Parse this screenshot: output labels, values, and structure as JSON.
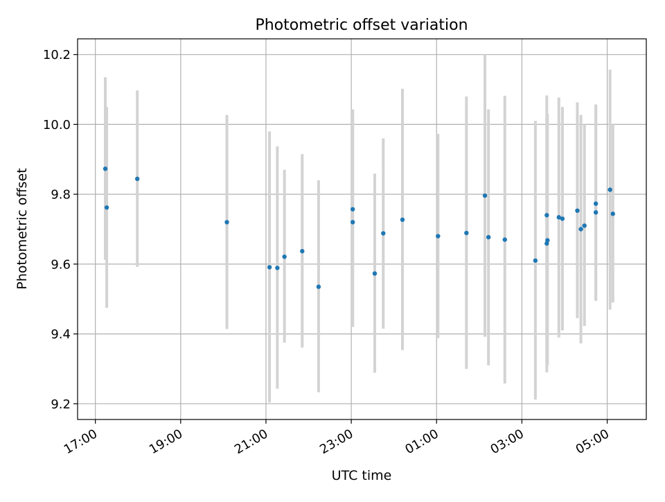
{
  "chart_data": {
    "type": "scatter",
    "title": "Photometric offset variation",
    "xlabel": "UTC time",
    "ylabel": "Photometric offset",
    "x_axis_type": "time",
    "xlim": [
      "16:35",
      "05:55"
    ],
    "ylim": [
      9.155,
      10.245
    ],
    "x_ticks": [
      {
        "t": "17:00",
        "label": "17:00"
      },
      {
        "t": "19:00",
        "label": "19:00"
      },
      {
        "t": "21:00",
        "label": "21:00"
      },
      {
        "t": "23:00",
        "label": "23:00"
      },
      {
        "t": "01:00",
        "label": "01:00"
      },
      {
        "t": "03:00",
        "label": "03:00"
      },
      {
        "t": "05:00",
        "label": "05:00"
      }
    ],
    "y_ticks": [
      {
        "v": 9.2,
        "label": "9.2"
      },
      {
        "v": 9.4,
        "label": "9.4"
      },
      {
        "v": 9.6,
        "label": "9.6"
      },
      {
        "v": 9.8,
        "label": "9.8"
      },
      {
        "v": 10.0,
        "label": "10.0"
      },
      {
        "v": 10.2,
        "label": "10.2"
      }
    ],
    "grid": true,
    "colors": {
      "point": "#1f77b4",
      "errorbar": "#d3d3d3",
      "grid": "#b0b0b0"
    },
    "series": [
      {
        "points": [
          {
            "t": "17:14",
            "y": 9.873,
            "lo": 9.612,
            "hi": 10.135
          },
          {
            "t": "17:16",
            "y": 9.762,
            "lo": 9.475,
            "hi": 10.05
          },
          {
            "t": "17:59",
            "y": 9.844,
            "lo": 9.592,
            "hi": 10.097
          },
          {
            "t": "20:05",
            "y": 9.72,
            "lo": 9.414,
            "hi": 10.027
          },
          {
            "t": "21:05",
            "y": 9.591,
            "lo": 9.204,
            "hi": 9.98
          },
          {
            "t": "21:16",
            "y": 9.589,
            "lo": 9.243,
            "hi": 9.937
          },
          {
            "t": "21:26",
            "y": 9.621,
            "lo": 9.375,
            "hi": 9.87
          },
          {
            "t": "21:51",
            "y": 9.637,
            "lo": 9.361,
            "hi": 9.915
          },
          {
            "t": "22:14",
            "y": 9.535,
            "lo": 9.233,
            "hi": 9.84
          },
          {
            "t": "23:02",
            "y": 9.757,
            "lo": 9.42,
            "hi": 10.043
          },
          {
            "t": "23:02",
            "y": 9.72,
            "lo": 9.42,
            "hi": 10.043
          },
          {
            "t": "23:33",
            "y": 9.573,
            "lo": 9.289,
            "hi": 9.859
          },
          {
            "t": "23:45",
            "y": 9.688,
            "lo": 9.415,
            "hi": 9.96
          },
          {
            "t": "00:12",
            "y": 9.727,
            "lo": 9.354,
            "hi": 10.102
          },
          {
            "t": "01:02",
            "y": 9.68,
            "lo": 9.388,
            "hi": 9.973
          },
          {
            "t": "01:42",
            "y": 9.689,
            "lo": 9.3,
            "hi": 10.08
          },
          {
            "t": "02:08",
            "y": 9.796,
            "lo": 9.392,
            "hi": 10.2
          },
          {
            "t": "02:13",
            "y": 9.677,
            "lo": 9.31,
            "hi": 10.043
          },
          {
            "t": "02:36",
            "y": 9.67,
            "lo": 9.258,
            "hi": 10.082
          },
          {
            "t": "03:19",
            "y": 9.61,
            "lo": 9.212,
            "hi": 10.01
          },
          {
            "t": "03:35",
            "y": 9.74,
            "lo": 9.29,
            "hi": 10.083
          },
          {
            "t": "03:35",
            "y": 9.659,
            "lo": 9.32,
            "hi": 10.02
          },
          {
            "t": "03:36",
            "y": 9.668,
            "lo": 9.31,
            "hi": 10.03
          },
          {
            "t": "03:52",
            "y": 9.734,
            "lo": 9.39,
            "hi": 10.077
          },
          {
            "t": "03:57",
            "y": 9.73,
            "lo": 9.41,
            "hi": 10.05
          },
          {
            "t": "04:18",
            "y": 9.753,
            "lo": 9.445,
            "hi": 10.063
          },
          {
            "t": "04:23",
            "y": 9.7,
            "lo": 9.373,
            "hi": 10.027
          },
          {
            "t": "04:28",
            "y": 9.71,
            "lo": 9.423,
            "hi": 10.0
          },
          {
            "t": "04:44",
            "y": 9.773,
            "lo": 9.495,
            "hi": 10.057
          },
          {
            "t": "04:44",
            "y": 9.748,
            "lo": 9.495,
            "hi": 10.057
          },
          {
            "t": "05:04",
            "y": 9.813,
            "lo": 9.47,
            "hi": 10.157
          },
          {
            "t": "05:08",
            "y": 9.744,
            "lo": 9.49,
            "hi": 10.0
          }
        ]
      }
    ]
  }
}
